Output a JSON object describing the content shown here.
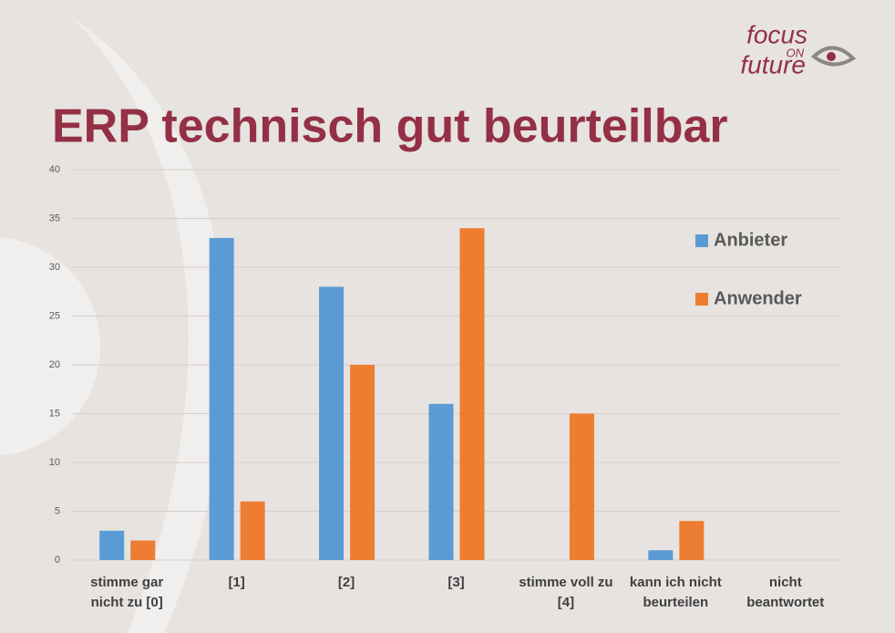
{
  "logo": {
    "line1": "focus",
    "line2": "ON",
    "line3": "future"
  },
  "chart_data": {
    "type": "bar",
    "title": "ERP technisch gut beurteilbar",
    "categories": [
      "stimme gar nicht zu [0]",
      "[1]",
      "[2]",
      "[3]",
      "stimme voll zu [4]",
      "kann ich nicht beurteilen",
      "nicht beantwortet"
    ],
    "series": [
      {
        "name": "Anbieter",
        "color": "#5b9bd5",
        "values": [
          3,
          33,
          28,
          16,
          0,
          1,
          0
        ]
      },
      {
        "name": "Anwender",
        "color": "#ed7d31",
        "values": [
          2,
          6,
          20,
          34,
          15,
          4,
          0
        ]
      }
    ],
    "ylim": [
      0,
      40
    ],
    "yticks": [
      0,
      5,
      10,
      15,
      20,
      25,
      30,
      35,
      40
    ],
    "grid": true,
    "legend": "right"
  }
}
